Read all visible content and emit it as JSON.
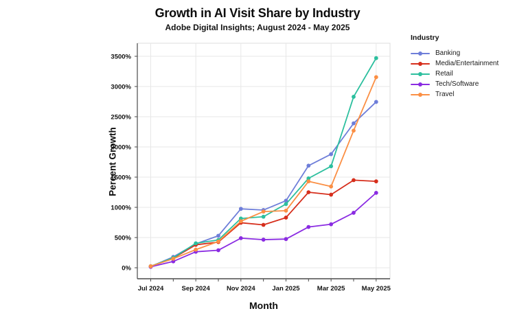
{
  "header": {
    "title": "Growth in AI Visit Share by Industry",
    "subtitle": "Adobe Digital Insights; August 2024 - May 2025"
  },
  "legend": {
    "title": "Industry"
  },
  "chart_data": {
    "type": "line",
    "title": "Growth in AI Visit Share by Industry",
    "subtitle": "Adobe Digital Insights; August 2024 - May 2025",
    "xlabel": "Month",
    "ylabel": "Percent Growth",
    "x": [
      "Jul 2024",
      "Aug 2024",
      "Sep 2024",
      "Oct 2024",
      "Nov 2024",
      "Dec 2024",
      "Jan 2025",
      "Feb 2025",
      "Mar 2025",
      "Apr 2025",
      "May 2025"
    ],
    "x_tick_labels": [
      "Jul 2024",
      "Sep 2024",
      "Nov 2024",
      "Jan 2025",
      "Mar 2025",
      "May 2025"
    ],
    "y_tick_values": [
      0,
      500,
      1000,
      1500,
      2000,
      2500,
      3000,
      3500
    ],
    "y_tick_labels": [
      "0%",
      "500%",
      "1000%",
      "1500%",
      "2000%",
      "2500%",
      "3000%",
      "3500%"
    ],
    "ylim": [
      -180,
      3720
    ],
    "grid": true,
    "legend_position": "right",
    "series": [
      {
        "name": "Banking",
        "color": "#6e7ed9",
        "values": [
          20,
          180,
          395,
          530,
          975,
          955,
          1110,
          1690,
          1880,
          2390,
          2745
        ]
      },
      {
        "name": "Media/Entertainment",
        "color": "#d62e1c",
        "values": [
          25,
          160,
          380,
          425,
          745,
          710,
          830,
          1250,
          1210,
          1450,
          1430
        ]
      },
      {
        "name": "Retail",
        "color": "#2cbf9e",
        "values": [
          25,
          165,
          405,
          460,
          815,
          845,
          1055,
          1480,
          1680,
          2830,
          3470
        ]
      },
      {
        "name": "Tech/Software",
        "color": "#8a2be2",
        "values": [
          15,
          105,
          265,
          290,
          490,
          465,
          475,
          675,
          720,
          910,
          1240
        ]
      },
      {
        "name": "Travel",
        "color": "#fb8f44",
        "values": [
          25,
          150,
          300,
          435,
          770,
          930,
          945,
          1430,
          1345,
          2270,
          3155
        ]
      }
    ]
  }
}
